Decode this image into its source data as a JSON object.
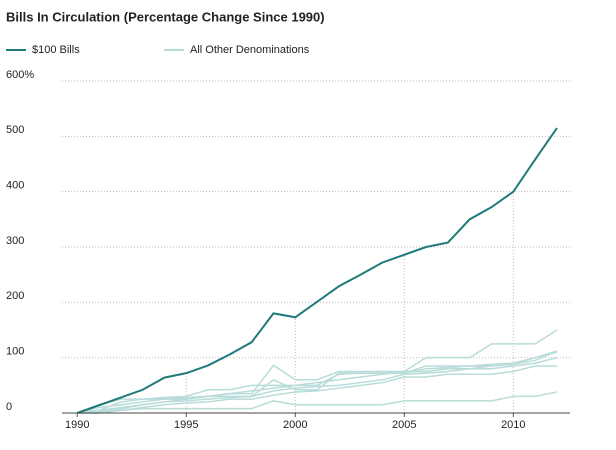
{
  "chart_data": {
    "type": "line",
    "title": "Bills In Circulation (Percentage Change Since 1990)",
    "x": [
      1990,
      1991,
      1992,
      1993,
      1994,
      1995,
      1996,
      1997,
      1998,
      1999,
      2000,
      2001,
      2002,
      2003,
      2004,
      2005,
      2006,
      2007,
      2008,
      2009,
      2010,
      2011,
      2012
    ],
    "xlim": [
      1989.3,
      2012.6
    ],
    "xticks": [
      1990,
      1995,
      2000,
      2005,
      2010
    ],
    "ylim": [
      0,
      600
    ],
    "yticks": [
      0,
      100,
      200,
      300,
      400,
      500,
      {
        "value": 600,
        "label": "600%"
      }
    ],
    "grid": true,
    "series": [
      {
        "name": "$100 Bills",
        "color": "#1f7b78",
        "values": [
          0,
          14,
          28,
          42,
          64,
          72,
          86,
          106,
          128,
          180,
          173,
          201,
          229,
          250,
          272,
          286,
          300,
          308,
          350,
          372,
          400,
          458,
          515
        ]
      },
      {
        "name": "All Other Denominations",
        "color": "#b8dcd9",
        "lines": [
          [
            0,
            5,
            10,
            15,
            20,
            25,
            30,
            35,
            40,
            45,
            50,
            55,
            60,
            65,
            70,
            75,
            100,
            100,
            100,
            125,
            125,
            125,
            150
          ],
          [
            0,
            10,
            15,
            20,
            25,
            28,
            30,
            35,
            35,
            86,
            60,
            60,
            75,
            75,
            75,
            75,
            75,
            80,
            80,
            85,
            88,
            100,
            112
          ],
          [
            0,
            5,
            20,
            25,
            28,
            30,
            42,
            42,
            50,
            50,
            50,
            50,
            70,
            72,
            72,
            72,
            80,
            82,
            85,
            88,
            90,
            100,
            110
          ],
          [
            0,
            2,
            8,
            15,
            20,
            22,
            25,
            28,
            30,
            40,
            45,
            48,
            50,
            55,
            60,
            70,
            72,
            75,
            80,
            80,
            85,
            90,
            100
          ],
          [
            0,
            0,
            5,
            10,
            15,
            18,
            20,
            25,
            25,
            32,
            38,
            40,
            45,
            50,
            55,
            65,
            65,
            70,
            70,
            70,
            75,
            85,
            85
          ],
          [
            0,
            0,
            5,
            8,
            8,
            8,
            8,
            8,
            8,
            22,
            15,
            15,
            15,
            15,
            15,
            22,
            22,
            22,
            22,
            22,
            30,
            30,
            38
          ],
          [
            0,
            15,
            25,
            25,
            25,
            25,
            30,
            30,
            30,
            60,
            42,
            42,
            72,
            72,
            72,
            72,
            85,
            85,
            85,
            85,
            88,
            95,
            112
          ]
        ]
      }
    ]
  }
}
